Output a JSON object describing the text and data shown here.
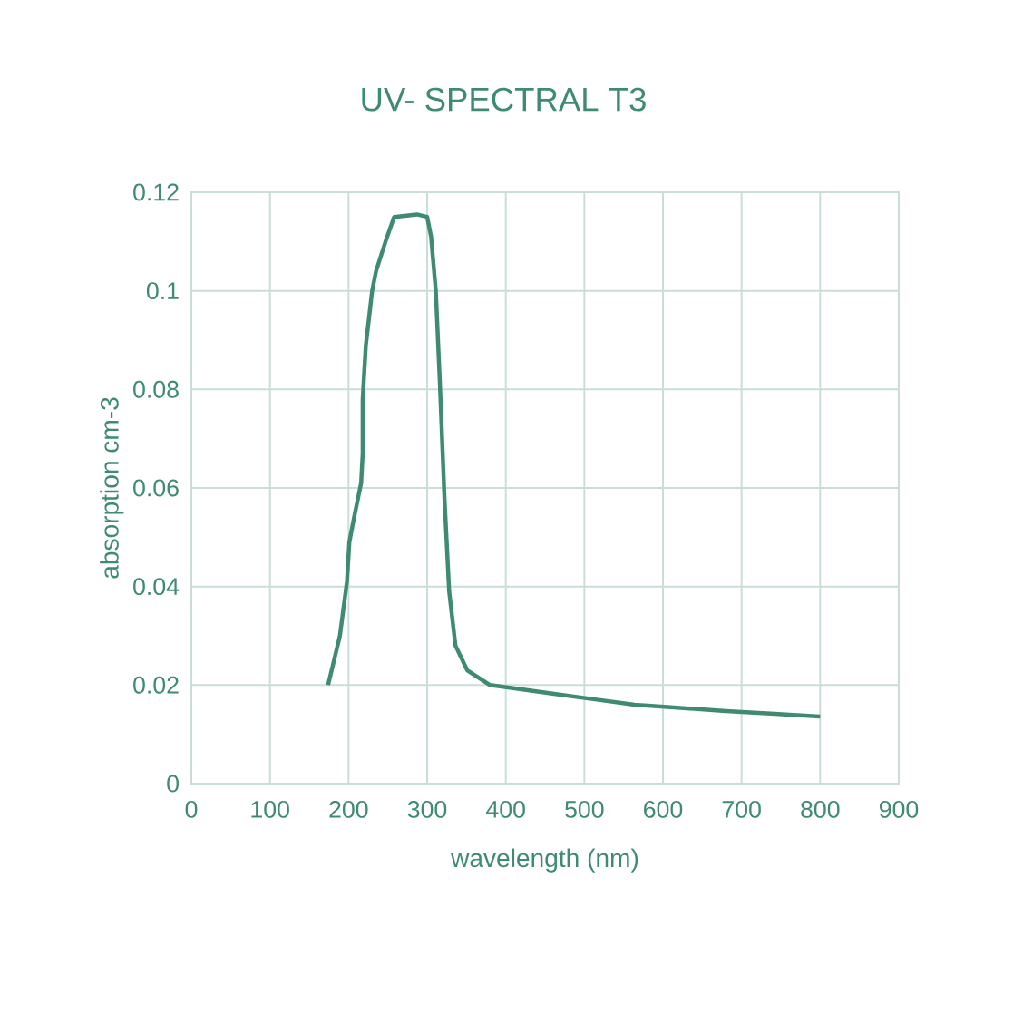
{
  "chart_data": {
    "type": "line",
    "title": "UV- SPECTRAL T3",
    "xlabel": "wavelength (nm)",
    "ylabel": "absorption cm-3",
    "x": [
      174,
      189,
      198,
      201,
      207,
      216,
      218,
      218,
      222,
      230,
      235,
      247,
      258,
      287,
      300,
      305,
      311,
      316,
      322,
      328,
      336,
      351,
      380,
      426,
      472,
      518,
      564,
      610,
      680,
      737,
      800
    ],
    "series": [
      {
        "color": "#3f8b72",
        "values": [
          0.02,
          0.03,
          0.041,
          0.049,
          0.054,
          0.061,
          0.067,
          0.078,
          0.089,
          0.1,
          0.104,
          0.11,
          0.115,
          0.1155,
          0.115,
          0.111,
          0.1,
          0.082,
          0.058,
          0.039,
          0.028,
          0.023,
          0.02,
          0.019,
          0.018,
          0.017,
          0.016,
          0.0155,
          0.0147,
          0.0142,
          0.0136
        ]
      }
    ],
    "xlim": [
      0,
      900
    ],
    "ylim": [
      0,
      0.12
    ],
    "xticks": [
      0,
      100,
      200,
      300,
      400,
      500,
      600,
      700,
      800,
      900
    ],
    "yticks": [
      0,
      0.02,
      0.04,
      0.06,
      0.08,
      0.1,
      0.12
    ],
    "grid": true
  }
}
